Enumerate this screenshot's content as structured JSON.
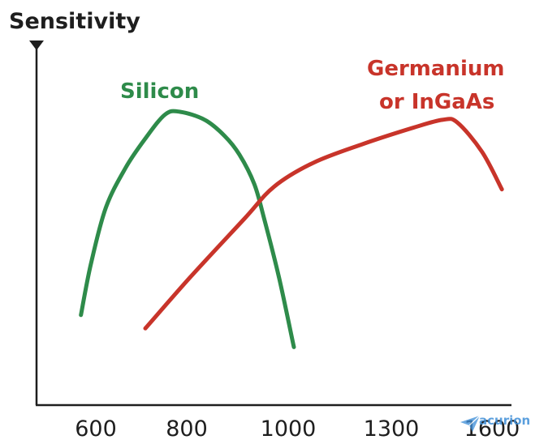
{
  "chart_data": {
    "type": "line",
    "ylabel": "Sensitivity",
    "xlabel": "",
    "categories": [
      "600",
      "800",
      "1000",
      "1300",
      "1600"
    ],
    "series": [
      {
        "name": "Silicon",
        "color": "#2e8b4a",
        "points": [
          [
            0.3,
            0.24
          ],
          [
            0.5,
            0.43
          ],
          [
            0.8,
            0.64
          ],
          [
            1.2,
            0.79
          ],
          [
            1.6,
            0.9
          ],
          [
            2.0,
            0.99
          ],
          [
            2.3,
            1.0
          ],
          [
            2.8,
            0.97
          ],
          [
            3.2,
            0.91
          ],
          [
            3.5,
            0.84
          ],
          [
            3.8,
            0.73
          ],
          [
            4.0,
            0.6
          ],
          [
            4.3,
            0.38
          ],
          [
            4.6,
            0.12
          ]
        ]
      },
      {
        "name": "Germanium or InGaAs",
        "color": "#c8342a",
        "points": [
          [
            1.6,
            0.19
          ],
          [
            2.5,
            0.38
          ],
          [
            3.6,
            0.6
          ],
          [
            4.2,
            0.72
          ],
          [
            5.0,
            0.81
          ],
          [
            6.0,
            0.88
          ],
          [
            7.0,
            0.94
          ],
          [
            7.6,
            0.97
          ],
          [
            7.9,
            0.96
          ],
          [
            8.4,
            0.85
          ],
          [
            8.8,
            0.71
          ]
        ]
      }
    ],
    "labels": {
      "silicon": "Silicon",
      "germanium_line1": "Germanium",
      "germanium_line2": "or InGaAs"
    },
    "grid": false
  },
  "watermark": {
    "text": "acurion",
    "icon": "paper-plane-icon"
  }
}
